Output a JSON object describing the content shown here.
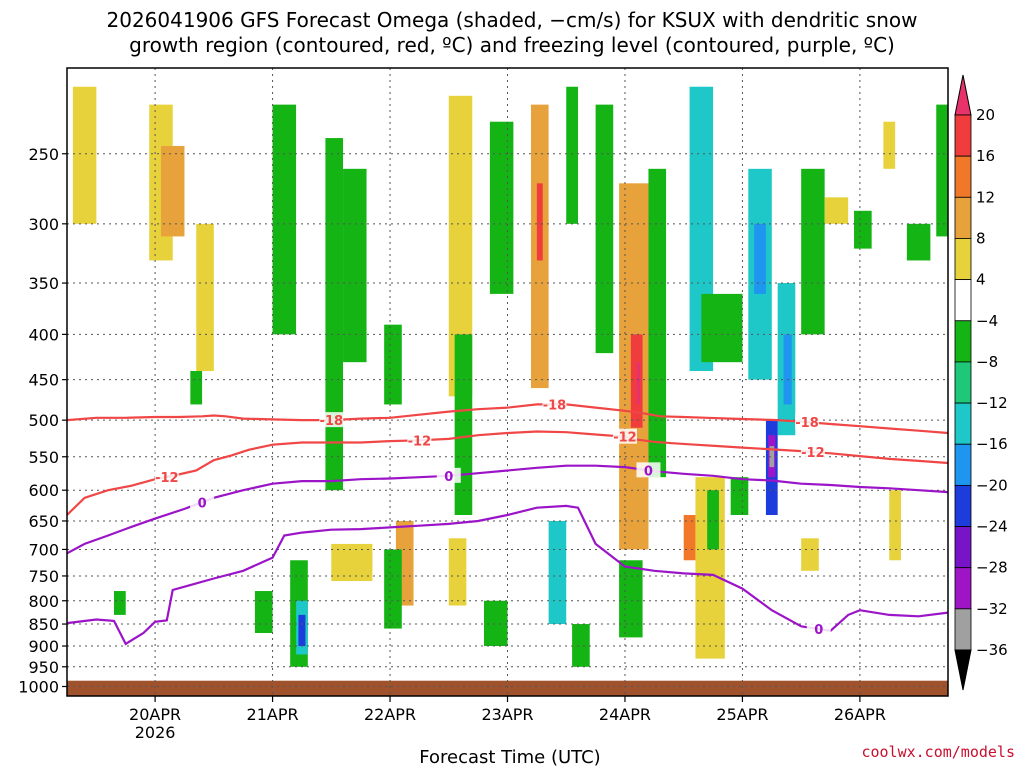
{
  "chart_data": {
    "type": "heatmap",
    "title_line1": "2026041906 GFS Forecast Omega (shaded, −cm/s) for KSUX with dendritic snow",
    "title_line2": "growth region (contoured, red, ºC) and freezing level (contoured, purple, ºC)",
    "xlabel": "Forecast Time (UTC)",
    "credit": "coolwx.com/models",
    "x_ticks": [
      {
        "label": "20APR",
        "sub": "2026",
        "day": 20
      },
      {
        "label": "21APR",
        "sub": "",
        "day": 21
      },
      {
        "label": "22APR",
        "sub": "",
        "day": 22
      },
      {
        "label": "23APR",
        "sub": "",
        "day": 23
      },
      {
        "label": "24APR",
        "sub": "",
        "day": 24
      },
      {
        "label": "25APR",
        "sub": "",
        "day": 25
      },
      {
        "label": "26APR",
        "sub": "",
        "day": 26
      }
    ],
    "xlim": [
      19.25,
      26.75
    ],
    "y_ticks": [
      250,
      300,
      350,
      400,
      450,
      500,
      550,
      600,
      650,
      700,
      750,
      800,
      850,
      900,
      950,
      1000
    ],
    "ylim": [
      1025,
      200
    ],
    "y_scale": "log",
    "colorbar": {
      "labels": [
        "20",
        "16",
        "12",
        "8",
        "4",
        "−4",
        "−8",
        "−12",
        "−16",
        "−20",
        "−24",
        "−28",
        "−32",
        "−36"
      ],
      "colors": [
        "#e8336a",
        "#f03c3c",
        "#f07828",
        "#e8a23c",
        "#e8d23c",
        "#ffffff",
        "#14b414",
        "#1ec878",
        "#1ec8c8",
        "#1e96f0",
        "#1e3cdc",
        "#7814c8",
        "#a014c8",
        "#a0a0a0",
        "#000000"
      ]
    },
    "contours": {
      "minus18": {
        "label": "-18",
        "color": "#f04646",
        "points": [
          [
            19.25,
            500
          ],
          [
            19.5,
            497
          ],
          [
            19.75,
            497
          ],
          [
            20.0,
            496
          ],
          [
            20.2,
            496
          ],
          [
            20.4,
            495
          ],
          [
            20.5,
            494
          ],
          [
            20.6,
            495
          ],
          [
            20.75,
            498
          ],
          [
            21.0,
            499
          ],
          [
            21.25,
            500
          ],
          [
            21.5,
            500
          ],
          [
            21.75,
            498
          ],
          [
            22.0,
            497
          ],
          [
            22.25,
            493
          ],
          [
            22.5,
            489
          ],
          [
            22.75,
            486
          ],
          [
            23.0,
            484
          ],
          [
            23.25,
            480
          ],
          [
            23.5,
            480
          ],
          [
            23.75,
            484
          ],
          [
            24.0,
            488
          ],
          [
            24.15,
            491
          ],
          [
            24.3,
            495
          ],
          [
            24.5,
            496
          ],
          [
            24.7,
            497
          ],
          [
            24.9,
            498
          ],
          [
            25.1,
            499
          ],
          [
            25.3,
            500
          ],
          [
            25.5,
            502
          ],
          [
            25.75,
            505
          ],
          [
            26.0,
            508
          ],
          [
            26.25,
            511
          ],
          [
            26.5,
            514
          ],
          [
            26.75,
            517
          ]
        ]
      },
      "minus12": {
        "label": "-12",
        "color": "#f04646",
        "points": [
          [
            19.25,
            640
          ],
          [
            19.4,
            612
          ],
          [
            19.6,
            600
          ],
          [
            19.8,
            593
          ],
          [
            20.0,
            583
          ],
          [
            20.2,
            576
          ],
          [
            20.35,
            570
          ],
          [
            20.5,
            555
          ],
          [
            20.65,
            548
          ],
          [
            20.8,
            540
          ],
          [
            21.0,
            533
          ],
          [
            21.25,
            530
          ],
          [
            21.5,
            530
          ],
          [
            21.75,
            530
          ],
          [
            22.0,
            528
          ],
          [
            22.25,
            527
          ],
          [
            22.5,
            525
          ],
          [
            22.75,
            520
          ],
          [
            23.0,
            517
          ],
          [
            23.25,
            515
          ],
          [
            23.5,
            516
          ],
          [
            23.75,
            519
          ],
          [
            24.0,
            522
          ],
          [
            24.1,
            526
          ],
          [
            24.25,
            529
          ],
          [
            24.4,
            531
          ],
          [
            24.6,
            533
          ],
          [
            24.8,
            535
          ],
          [
            25.0,
            537
          ],
          [
            25.2,
            539
          ],
          [
            25.5,
            542
          ],
          [
            25.75,
            545
          ],
          [
            26.0,
            549
          ],
          [
            26.25,
            553
          ],
          [
            26.5,
            556
          ],
          [
            26.75,
            559
          ]
        ]
      },
      "freezing": {
        "label": "0",
        "color": "#9b14c8",
        "points": [
          [
            19.25,
            707
          ],
          [
            19.4,
            690
          ],
          [
            19.6,
            675
          ],
          [
            19.8,
            660
          ],
          [
            20.0,
            646
          ],
          [
            20.25,
            630
          ],
          [
            20.5,
            612
          ],
          [
            20.75,
            600
          ],
          [
            21.0,
            590
          ],
          [
            21.25,
            586
          ],
          [
            21.5,
            586
          ],
          [
            21.75,
            583
          ],
          [
            22.0,
            582
          ],
          [
            22.25,
            580
          ],
          [
            22.5,
            578
          ],
          [
            22.75,
            574
          ],
          [
            23.0,
            570
          ],
          [
            23.25,
            566
          ],
          [
            23.5,
            563
          ],
          [
            23.75,
            563
          ],
          [
            24.0,
            565
          ],
          [
            24.25,
            571
          ],
          [
            24.5,
            575
          ],
          [
            24.75,
            578
          ],
          [
            25.0,
            583
          ],
          [
            25.25,
            585
          ],
          [
            25.5,
            590
          ],
          [
            25.75,
            592
          ],
          [
            26.0,
            595
          ],
          [
            26.25,
            597
          ],
          [
            26.5,
            600
          ],
          [
            26.75,
            603
          ]
        ]
      },
      "freezing_upper": {
        "label": "-18",
        "color": "#f04646",
        "points": []
      },
      "freezing_lower": {
        "label": "0",
        "color": "#9b14c8",
        "points": [
          [
            19.25,
            848
          ],
          [
            19.5,
            840
          ],
          [
            19.65,
            843
          ],
          [
            19.75,
            895
          ],
          [
            19.9,
            870
          ],
          [
            20.0,
            845
          ],
          [
            20.1,
            842
          ],
          [
            20.15,
            778
          ],
          [
            20.3,
            768
          ],
          [
            20.5,
            755
          ],
          [
            20.75,
            740
          ],
          [
            21.0,
            715
          ],
          [
            21.1,
            675
          ],
          [
            21.25,
            670
          ],
          [
            21.5,
            665
          ],
          [
            21.75,
            664
          ],
          [
            22.0,
            661
          ],
          [
            22.25,
            658
          ],
          [
            22.5,
            655
          ],
          [
            22.75,
            650
          ],
          [
            23.0,
            640
          ],
          [
            23.25,
            628
          ],
          [
            23.5,
            625
          ],
          [
            23.6,
            628
          ],
          [
            23.75,
            690
          ],
          [
            24.0,
            732
          ],
          [
            24.25,
            740
          ],
          [
            24.5,
            745
          ],
          [
            24.75,
            748
          ],
          [
            25.0,
            775
          ],
          [
            25.25,
            820
          ],
          [
            25.5,
            855
          ],
          [
            25.75,
            865
          ],
          [
            25.9,
            830
          ],
          [
            26.0,
            820
          ],
          [
            26.25,
            830
          ],
          [
            26.5,
            833
          ],
          [
            26.75,
            825
          ]
        ]
      }
    },
    "omega_regions": [
      {
        "x0": 19.3,
        "x1": 19.5,
        "top": 210,
        "bottom": 300,
        "color": "#e8d23c"
      },
      {
        "x0": 19.95,
        "x1": 20.15,
        "top": 220,
        "bottom": 330,
        "color": "#e8d23c"
      },
      {
        "x0": 20.05,
        "x1": 20.25,
        "top": 245,
        "bottom": 310,
        "color": "#e8a23c"
      },
      {
        "x0": 20.35,
        "x1": 20.5,
        "top": 300,
        "bottom": 440,
        "color": "#e8d23c"
      },
      {
        "x0": 21.0,
        "x1": 21.2,
        "top": 220,
        "bottom": 400,
        "color": "#14b414"
      },
      {
        "x0": 21.15,
        "x1": 21.3,
        "top": 720,
        "bottom": 950,
        "color": "#14b414"
      },
      {
        "x0": 21.2,
        "x1": 21.3,
        "top": 800,
        "bottom": 920,
        "color": "#1ec8c8"
      },
      {
        "x0": 21.22,
        "x1": 21.28,
        "top": 830,
        "bottom": 900,
        "color": "#1e3cdc"
      },
      {
        "x0": 21.45,
        "x1": 21.6,
        "top": 240,
        "bottom": 600,
        "color": "#14b414"
      },
      {
        "x0": 21.6,
        "x1": 21.8,
        "top": 260,
        "bottom": 430,
        "color": "#14b414"
      },
      {
        "x0": 21.95,
        "x1": 22.1,
        "top": 390,
        "bottom": 480,
        "color": "#14b414"
      },
      {
        "x0": 22.05,
        "x1": 22.2,
        "top": 650,
        "bottom": 810,
        "color": "#e8a23c"
      },
      {
        "x0": 22.5,
        "x1": 22.7,
        "top": 215,
        "bottom": 470,
        "color": "#e8d23c"
      },
      {
        "x0": 22.55,
        "x1": 22.7,
        "top": 400,
        "bottom": 640,
        "color": "#14b414"
      },
      {
        "x0": 22.85,
        "x1": 23.05,
        "top": 230,
        "bottom": 360,
        "color": "#14b414"
      },
      {
        "x0": 23.2,
        "x1": 23.35,
        "top": 220,
        "bottom": 460,
        "color": "#e8a23c"
      },
      {
        "x0": 23.25,
        "x1": 23.3,
        "top": 270,
        "bottom": 330,
        "color": "#f03c3c"
      },
      {
        "x0": 23.35,
        "x1": 23.5,
        "top": 650,
        "bottom": 850,
        "color": "#1ec8c8"
      },
      {
        "x0": 23.5,
        "x1": 23.6,
        "top": 210,
        "bottom": 300,
        "color": "#14b414"
      },
      {
        "x0": 23.75,
        "x1": 23.9,
        "top": 220,
        "bottom": 420,
        "color": "#14b414"
      },
      {
        "x0": 23.95,
        "x1": 24.2,
        "top": 270,
        "bottom": 700,
        "color": "#e8a23c"
      },
      {
        "x0": 24.05,
        "x1": 24.15,
        "top": 400,
        "bottom": 510,
        "color": "#f03c3c"
      },
      {
        "x0": 24.1,
        "x1": 24.13,
        "top": 430,
        "bottom": 480,
        "color": "#e8336a"
      },
      {
        "x0": 24.2,
        "x1": 24.35,
        "top": 260,
        "bottom": 580,
        "color": "#14b414"
      },
      {
        "x0": 24.5,
        "x1": 24.6,
        "top": 640,
        "bottom": 720,
        "color": "#f07828"
      },
      {
        "x0": 24.55,
        "x1": 24.75,
        "top": 210,
        "bottom": 440,
        "color": "#1ec8c8"
      },
      {
        "x0": 24.65,
        "x1": 25.0,
        "top": 360,
        "bottom": 430,
        "color": "#14b414"
      },
      {
        "x0": 25.05,
        "x1": 25.25,
        "top": 260,
        "bottom": 450,
        "color": "#1ec8c8"
      },
      {
        "x0": 25.1,
        "x1": 25.2,
        "top": 300,
        "bottom": 360,
        "color": "#1e96f0"
      },
      {
        "x0": 25.3,
        "x1": 25.45,
        "top": 350,
        "bottom": 520,
        "color": "#1ec8c8"
      },
      {
        "x0": 25.35,
        "x1": 25.42,
        "top": 400,
        "bottom": 480,
        "color": "#1e96f0"
      },
      {
        "x0": 25.2,
        "x1": 25.3,
        "top": 500,
        "bottom": 640,
        "color": "#1e3cdc"
      },
      {
        "x0": 25.22,
        "x1": 25.28,
        "top": 520,
        "bottom": 580,
        "color": "#a014c8"
      },
      {
        "x0": 25.23,
        "x1": 25.27,
        "top": 535,
        "bottom": 565,
        "color": "#a0a0a0"
      },
      {
        "x0": 25.5,
        "x1": 25.7,
        "top": 260,
        "bottom": 400,
        "color": "#14b414"
      },
      {
        "x0": 25.7,
        "x1": 25.9,
        "top": 280,
        "bottom": 300,
        "color": "#e8d23c"
      },
      {
        "x0": 25.95,
        "x1": 26.1,
        "top": 290,
        "bottom": 320,
        "color": "#14b414"
      },
      {
        "x0": 26.2,
        "x1": 26.3,
        "top": 230,
        "bottom": 260,
        "color": "#e8d23c"
      },
      {
        "x0": 26.4,
        "x1": 26.6,
        "top": 300,
        "bottom": 330,
        "color": "#14b414"
      },
      {
        "x0": 26.65,
        "x1": 26.75,
        "top": 220,
        "bottom": 310,
        "color": "#14b414"
      },
      {
        "x0": 26.25,
        "x1": 26.35,
        "top": 600,
        "bottom": 720,
        "color": "#e8d23c"
      },
      {
        "x0": 25.5,
        "x1": 25.65,
        "top": 680,
        "bottom": 740,
        "color": "#e8d23c"
      },
      {
        "x0": 24.6,
        "x1": 24.85,
        "top": 580,
        "bottom": 930,
        "color": "#e8d23c"
      },
      {
        "x0": 23.95,
        "x1": 24.15,
        "top": 720,
        "bottom": 880,
        "color": "#14b414"
      },
      {
        "x0": 24.7,
        "x1": 24.8,
        "top": 600,
        "bottom": 700,
        "color": "#14b414"
      },
      {
        "x0": 24.9,
        "x1": 25.05,
        "top": 580,
        "bottom": 640,
        "color": "#14b414"
      },
      {
        "x0": 21.95,
        "x1": 22.1,
        "top": 700,
        "bottom": 860,
        "color": "#14b414"
      },
      {
        "x0": 22.5,
        "x1": 22.65,
        "top": 680,
        "bottom": 810,
        "color": "#e8d23c"
      },
      {
        "x0": 20.85,
        "x1": 21.0,
        "top": 780,
        "bottom": 870,
        "color": "#14b414"
      },
      {
        "x0": 19.65,
        "x1": 19.75,
        "top": 780,
        "bottom": 830,
        "color": "#14b414"
      },
      {
        "x0": 20.3,
        "x1": 20.4,
        "top": 440,
        "bottom": 480,
        "color": "#14b414"
      },
      {
        "x0": 21.5,
        "x1": 21.85,
        "top": 690,
        "bottom": 760,
        "color": "#e8d23c"
      },
      {
        "x0": 23.55,
        "x1": 23.7,
        "top": 850,
        "bottom": 950,
        "color": "#14b414"
      },
      {
        "x0": 22.8,
        "x1": 23.0,
        "top": 800,
        "bottom": 900,
        "color": "#14b414"
      }
    ]
  }
}
